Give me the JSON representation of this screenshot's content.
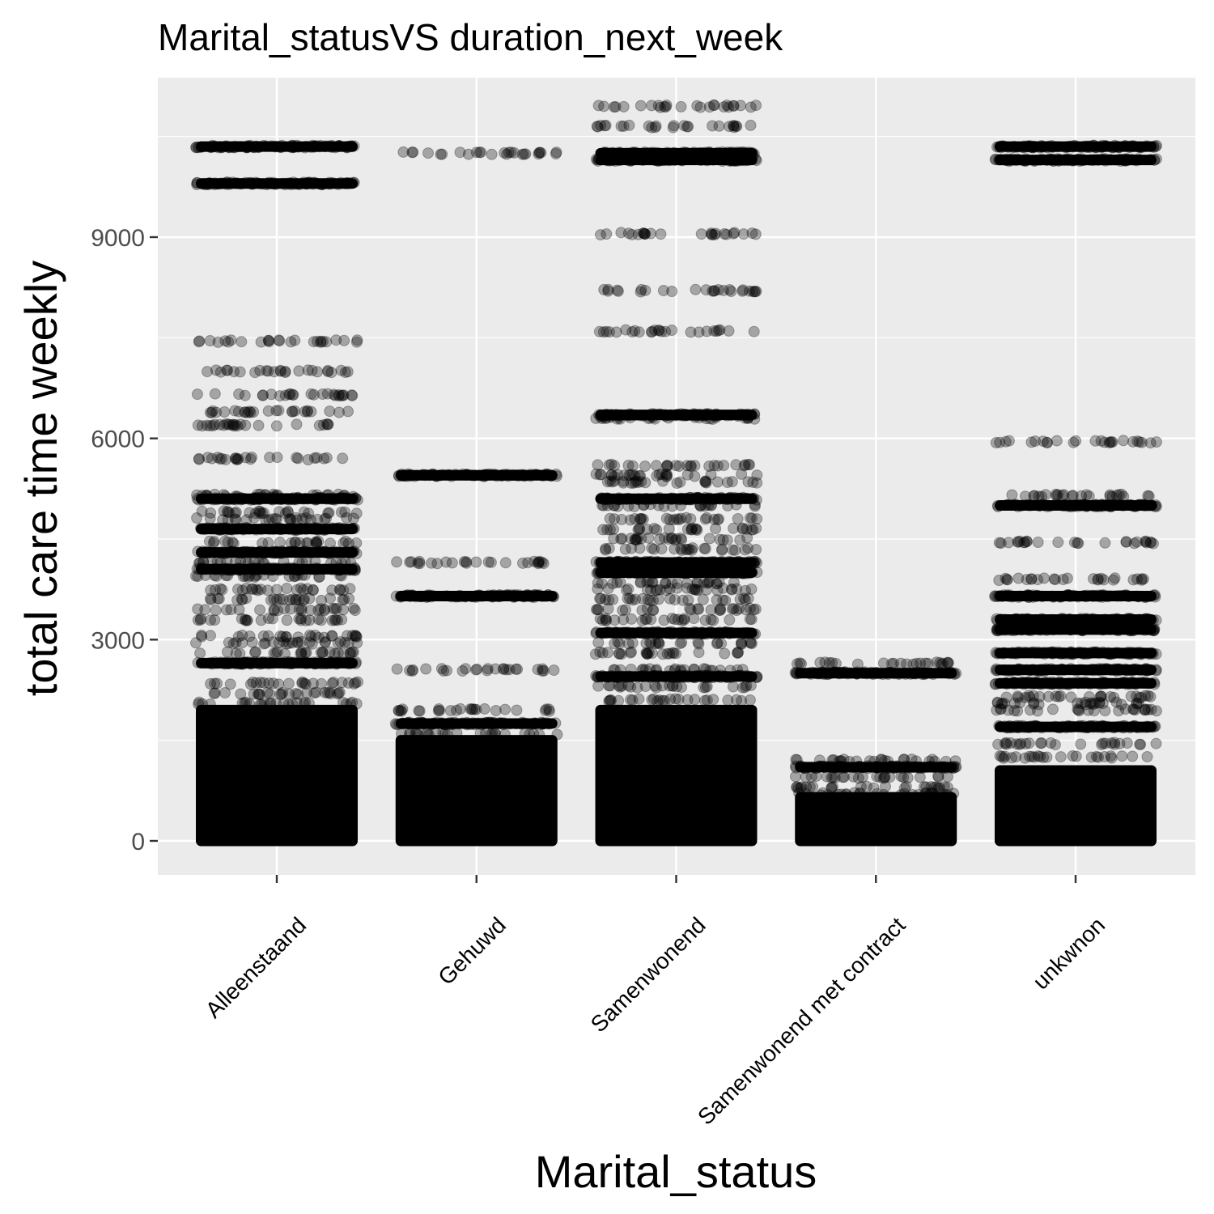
{
  "chart_data": {
    "type": "scatter",
    "title": "Marital_statusVS duration_next_week",
    "xlabel": "Marital_status",
    "ylabel": "total care time weekly",
    "categories": [
      "Alleenstaand",
      "Gehuwd",
      "Samenwonend",
      "Samenwonend met contract",
      "unkwnon"
    ],
    "yticks": [
      0,
      3000,
      6000,
      9000
    ],
    "ylim": [
      -500,
      11650
    ],
    "grid": true,
    "jitter": true,
    "point_color": "#000000",
    "point_alpha": 0.3,
    "panel_background": "#ebebeb",
    "series": [
      {
        "category": "Alleenstaand",
        "dense_range": [
          0,
          1950
        ],
        "levels": [
          2050,
          2200,
          2350,
          2650,
          2800,
          2950,
          3050,
          3300,
          3450,
          3600,
          3750,
          3950,
          4050,
          4150,
          4300,
          4450,
          4650,
          4800,
          4900,
          5100,
          5150,
          5700,
          6200,
          6400,
          6650,
          7000,
          7450,
          9800,
          10350
        ],
        "heavy_levels": [
          2650,
          4050,
          4300,
          4650,
          5100,
          9800,
          10350
        ]
      },
      {
        "category": "Gehuwd",
        "dense_range": [
          0,
          1500
        ],
        "levels": [
          1600,
          1750,
          1950,
          2550,
          3650,
          4150,
          5450,
          10250
        ],
        "heavy_levels": [
          1750,
          3650,
          5450
        ]
      },
      {
        "category": "Samenwonend",
        "dense_range": [
          0,
          1950
        ],
        "levels": [
          2100,
          2300,
          2450,
          2550,
          2800,
          2950,
          3100,
          3300,
          3450,
          3600,
          3750,
          3850,
          4000,
          4150,
          4350,
          4500,
          4650,
          4800,
          5000,
          5100,
          5350,
          5450,
          5600,
          6300,
          6350,
          7600,
          8200,
          9050,
          10150,
          10200,
          10250,
          10650,
          10950
        ],
        "heavy_levels": [
          2450,
          3100,
          4000,
          4150,
          5100,
          6350,
          10150,
          10250
        ]
      },
      {
        "category": "Samenwonend met contract",
        "dense_range": [
          0,
          650
        ],
        "levels": [
          700,
          800,
          950,
          1100,
          1200,
          2500,
          2650
        ],
        "heavy_levels": [
          1100,
          2500
        ]
      },
      {
        "category": "unkwnon",
        "dense_range": [
          0,
          1050
        ],
        "levels": [
          1250,
          1450,
          1700,
          1950,
          2050,
          2150,
          2350,
          2550,
          2800,
          3150,
          3300,
          3650,
          3900,
          4450,
          5000,
          5150,
          5950,
          10150,
          10350
        ],
        "heavy_levels": [
          1700,
          2350,
          2550,
          2800,
          3150,
          3300,
          3650,
          5000,
          10150,
          10350
        ]
      }
    ]
  }
}
